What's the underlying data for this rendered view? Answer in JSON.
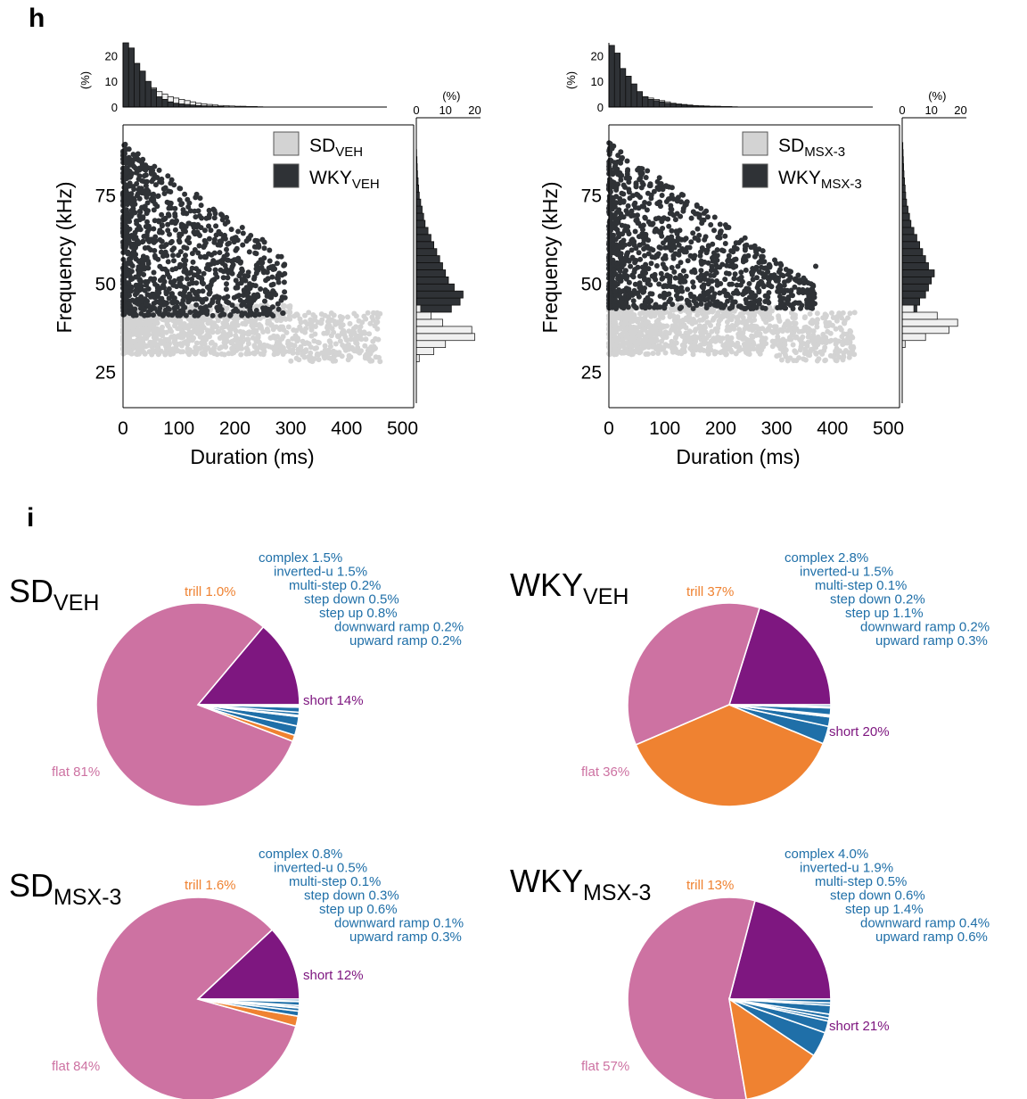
{
  "panels": {
    "h_label": "h",
    "i_label": "i"
  },
  "colors": {
    "sd_fill": "#d3d3d3",
    "wky_fill": "#2f3236",
    "flat": "#cd72a2",
    "trill": "#ef8231",
    "minor": "#1f6fa8",
    "short": "#7e1780"
  },
  "chart_data": [
    {
      "type": "scatter",
      "xlabel": "Duration (ms)",
      "ylabel": "Frequency (kHz)",
      "x_ticks": [
        "0",
        "100",
        "200",
        "300",
        "400",
        "500"
      ],
      "y_ticks": [
        "25",
        "50",
        "75"
      ],
      "xlim": [
        0,
        520
      ],
      "ylim": [
        15,
        95
      ],
      "legend": [
        {
          "base": "SD",
          "sub": "VEH",
          "color": "#d3d3d3"
        },
        {
          "base": "WKY",
          "sub": "VEH",
          "color": "#2f3236"
        }
      ],
      "top_hist": {
        "ylabel": "(%)",
        "ticks": [
          "0",
          "10",
          "20"
        ],
        "ylim": [
          0,
          25
        ],
        "bin_ms": 10,
        "wky": [
          25,
          23,
          17,
          14,
          10,
          7,
          4,
          3,
          2,
          1.5,
          1.2,
          1.0,
          0.8,
          0.6,
          0.5,
          0.4,
          0.3,
          0.2,
          0.1
        ],
        "sd": [
          8,
          9,
          9,
          8.5,
          8,
          7.5,
          6,
          5,
          4,
          3.5,
          3,
          2.5,
          2,
          1.5,
          1.2,
          1,
          0.8,
          0.6,
          0.5,
          0.4,
          0.3,
          0.3,
          0.2,
          0.2,
          0.1
        ]
      },
      "side_hist": {
        "ylabel": "(%)",
        "ticks": [
          "0",
          "10",
          "20"
        ],
        "xlim": [
          0,
          22
        ],
        "bin_khz": 2,
        "wky": [
          [
            43,
            12
          ],
          [
            45,
            15
          ],
          [
            47,
            16
          ],
          [
            49,
            13
          ],
          [
            51,
            11
          ],
          [
            53,
            10
          ],
          [
            55,
            9
          ],
          [
            57,
            8
          ],
          [
            59,
            7
          ],
          [
            61,
            6
          ],
          [
            63,
            5
          ],
          [
            65,
            4
          ],
          [
            67,
            3
          ],
          [
            69,
            2.5
          ],
          [
            71,
            2
          ],
          [
            73,
            1.5
          ],
          [
            75,
            1
          ],
          [
            77,
            0.8
          ],
          [
            79,
            0.6
          ],
          [
            81,
            0.4
          ],
          [
            83,
            0.3
          ],
          [
            85,
            0.2
          ],
          [
            87,
            0.1
          ]
        ],
        "sd": [
          [
            29,
            1
          ],
          [
            31,
            6
          ],
          [
            33,
            10
          ],
          [
            35,
            20
          ],
          [
            37,
            19
          ],
          [
            39,
            9
          ],
          [
            41,
            5
          ],
          [
            43,
            1.5
          ]
        ]
      },
      "points": {
        "wky_x_max": 290,
        "wky_y": [
          38,
          90
        ],
        "sd_x_max": 460,
        "sd_y": [
          30,
          45
        ]
      }
    },
    {
      "type": "scatter",
      "xlabel": "Duration (ms)",
      "ylabel": "Frequency (kHz)",
      "x_ticks": [
        "0",
        "100",
        "200",
        "300",
        "400",
        "500"
      ],
      "y_ticks": [
        "25",
        "50",
        "75"
      ],
      "xlim": [
        0,
        520
      ],
      "ylim": [
        15,
        95
      ],
      "legend": [
        {
          "base": "SD",
          "sub": "MSX-3",
          "color": "#d3d3d3"
        },
        {
          "base": "WKY",
          "sub": "MSX-3",
          "color": "#2f3236"
        }
      ],
      "top_hist": {
        "ylabel": "(%)",
        "ticks": [
          "0",
          "10",
          "20"
        ],
        "ylim": [
          0,
          25
        ],
        "bin_ms": 10,
        "wky": [
          24,
          21,
          15,
          12,
          9,
          6,
          4,
          3,
          2.5,
          2,
          1.5,
          1.2,
          1,
          0.8,
          0.6,
          0.5,
          0.4,
          0.3,
          0.2,
          0.1
        ],
        "sd": [
          6,
          8,
          8,
          7,
          6,
          5,
          4,
          3.5,
          3,
          2.5,
          2,
          1.5,
          1.2,
          1,
          0.8,
          0.6,
          0.5,
          0.4,
          0.3,
          0.3,
          0.2,
          0.2,
          0.1
        ]
      },
      "side_hist": {
        "ylabel": "(%)",
        "ticks": [
          "0",
          "10",
          "20"
        ],
        "xlim": [
          0,
          22
        ],
        "bin_khz": 2,
        "wky": [
          [
            41,
            3
          ],
          [
            43,
            5
          ],
          [
            45,
            6
          ],
          [
            47,
            8
          ],
          [
            49,
            9
          ],
          [
            51,
            10
          ],
          [
            53,
            11
          ],
          [
            55,
            9
          ],
          [
            57,
            8
          ],
          [
            59,
            7
          ],
          [
            61,
            6
          ],
          [
            63,
            5
          ],
          [
            65,
            4
          ],
          [
            67,
            3
          ],
          [
            69,
            2.5
          ],
          [
            71,
            2
          ],
          [
            73,
            1.5
          ],
          [
            75,
            1.2
          ],
          [
            77,
            1
          ],
          [
            79,
            0.8
          ],
          [
            81,
            0.6
          ],
          [
            83,
            0.5
          ],
          [
            85,
            0.4
          ],
          [
            87,
            0.3
          ],
          [
            89,
            0.2
          ]
        ],
        "sd": [
          [
            33,
            1
          ],
          [
            35,
            8
          ],
          [
            37,
            16
          ],
          [
            39,
            19
          ],
          [
            41,
            12
          ],
          [
            43,
            4
          ]
        ]
      },
      "points": {
        "wky_x_max": 370,
        "wky_y": [
          38,
          90
        ],
        "sd_x_max": 440,
        "sd_y": [
          30,
          45
        ]
      }
    },
    {
      "type": "pie",
      "title_base": "SD",
      "title_sub": "VEH",
      "slices": [
        {
          "name": "short",
          "label": "short 14%",
          "value": 14,
          "color": "#7e1780",
          "label_color": "#7e1780"
        },
        {
          "name": "flat",
          "label": "flat 81%",
          "value": 81,
          "color": "#cd72a2",
          "label_color": "#cd72a2"
        },
        {
          "name": "trill",
          "label": "trill 1.0%",
          "value": 1.0,
          "color": "#ef8231",
          "label_color": "#ef8231"
        },
        {
          "name": "complex",
          "label": "complex 1.5%",
          "value": 1.5,
          "color": "#1f6fa8",
          "label_color": "#1f6fa8"
        },
        {
          "name": "inverted-u",
          "label": "inverted-u 1.5%",
          "value": 1.5,
          "color": "#1f6fa8",
          "label_color": "#1f6fa8"
        },
        {
          "name": "multi-step",
          "label": "multi-step 0.2%",
          "value": 0.2,
          "color": "#1f6fa8",
          "label_color": "#1f6fa8"
        },
        {
          "name": "step-down",
          "label": "step down 0.5%",
          "value": 0.5,
          "color": "#1f6fa8",
          "label_color": "#1f6fa8"
        },
        {
          "name": "step-up",
          "label": "step up 0.8%",
          "value": 0.8,
          "color": "#1f6fa8",
          "label_color": "#1f6fa8"
        },
        {
          "name": "downward-ramp",
          "label": "downward ramp 0.2%",
          "value": 0.2,
          "color": "#1f6fa8",
          "label_color": "#1f6fa8"
        },
        {
          "name": "upward-ramp",
          "label": "upward ramp 0.2%",
          "value": 0.2,
          "color": "#1f6fa8",
          "label_color": "#1f6fa8"
        }
      ]
    },
    {
      "type": "pie",
      "title_base": "WKY",
      "title_sub": "VEH",
      "slices": [
        {
          "name": "short",
          "label": "short 20%",
          "value": 20,
          "color": "#7e1780",
          "label_color": "#7e1780"
        },
        {
          "name": "flat",
          "label": "flat 36%",
          "value": 36,
          "color": "#cd72a2",
          "label_color": "#cd72a2"
        },
        {
          "name": "trill",
          "label": "trill 37%",
          "value": 37,
          "color": "#ef8231",
          "label_color": "#ef8231"
        },
        {
          "name": "complex",
          "label": "complex 2.8%",
          "value": 2.8,
          "color": "#1f6fa8",
          "label_color": "#1f6fa8"
        },
        {
          "name": "inverted-u",
          "label": "inverted-u 1.5%",
          "value": 1.5,
          "color": "#1f6fa8",
          "label_color": "#1f6fa8"
        },
        {
          "name": "multi-step",
          "label": "multi-step 0.1%",
          "value": 0.1,
          "color": "#1f6fa8",
          "label_color": "#1f6fa8"
        },
        {
          "name": "step-down",
          "label": "step down 0.2%",
          "value": 0.2,
          "color": "#1f6fa8",
          "label_color": "#1f6fa8"
        },
        {
          "name": "step-up",
          "label": "step up 1.1%",
          "value": 1.1,
          "color": "#1f6fa8",
          "label_color": "#1f6fa8"
        },
        {
          "name": "downward-ramp",
          "label": "downward ramp 0.2%",
          "value": 0.2,
          "color": "#1f6fa8",
          "label_color": "#1f6fa8"
        },
        {
          "name": "upward-ramp",
          "label": "upward ramp 0.3%",
          "value": 0.3,
          "color": "#1f6fa8",
          "label_color": "#1f6fa8"
        }
      ]
    },
    {
      "type": "pie",
      "title_base": "SD",
      "title_sub": "MSX-3",
      "slices": [
        {
          "name": "short",
          "label": "short 12%",
          "value": 12,
          "color": "#7e1780",
          "label_color": "#7e1780"
        },
        {
          "name": "flat",
          "label": "flat 84%",
          "value": 84,
          "color": "#cd72a2",
          "label_color": "#cd72a2"
        },
        {
          "name": "trill",
          "label": "trill 1.6%",
          "value": 1.6,
          "color": "#ef8231",
          "label_color": "#ef8231"
        },
        {
          "name": "complex",
          "label": "complex 0.8%",
          "value": 0.8,
          "color": "#1f6fa8",
          "label_color": "#1f6fa8"
        },
        {
          "name": "inverted-u",
          "label": "inverted-u 0.5%",
          "value": 0.5,
          "color": "#1f6fa8",
          "label_color": "#1f6fa8"
        },
        {
          "name": "multi-step",
          "label": "multi-step 0.1%",
          "value": 0.1,
          "color": "#1f6fa8",
          "label_color": "#1f6fa8"
        },
        {
          "name": "step-down",
          "label": "step down 0.3%",
          "value": 0.3,
          "color": "#1f6fa8",
          "label_color": "#1f6fa8"
        },
        {
          "name": "step-up",
          "label": "step up 0.6%",
          "value": 0.6,
          "color": "#1f6fa8",
          "label_color": "#1f6fa8"
        },
        {
          "name": "downward-ramp",
          "label": "downward ramp 0.1%",
          "value": 0.1,
          "color": "#1f6fa8",
          "label_color": "#1f6fa8"
        },
        {
          "name": "upward-ramp",
          "label": "upward ramp 0.3%",
          "value": 0.3,
          "color": "#1f6fa8",
          "label_color": "#1f6fa8"
        }
      ]
    },
    {
      "type": "pie",
      "title_base": "WKY",
      "title_sub": "MSX-3",
      "slices": [
        {
          "name": "short",
          "label": "short 21%",
          "value": 21,
          "color": "#7e1780",
          "label_color": "#7e1780"
        },
        {
          "name": "flat",
          "label": "flat 57%",
          "value": 57,
          "color": "#cd72a2",
          "label_color": "#cd72a2"
        },
        {
          "name": "trill",
          "label": "trill 13%",
          "value": 13,
          "color": "#ef8231",
          "label_color": "#ef8231"
        },
        {
          "name": "complex",
          "label": "complex 4.0%",
          "value": 4.0,
          "color": "#1f6fa8",
          "label_color": "#1f6fa8"
        },
        {
          "name": "inverted-u",
          "label": "inverted-u 1.9%",
          "value": 1.9,
          "color": "#1f6fa8",
          "label_color": "#1f6fa8"
        },
        {
          "name": "multi-step",
          "label": "multi-step 0.5%",
          "value": 0.5,
          "color": "#1f6fa8",
          "label_color": "#1f6fa8"
        },
        {
          "name": "step-down",
          "label": "step down 0.6%",
          "value": 0.6,
          "color": "#1f6fa8",
          "label_color": "#1f6fa8"
        },
        {
          "name": "step-up",
          "label": "step up 1.4%",
          "value": 1.4,
          "color": "#1f6fa8",
          "label_color": "#1f6fa8"
        },
        {
          "name": "downward-ramp",
          "label": "downward ramp 0.4%",
          "value": 0.4,
          "color": "#1f6fa8",
          "label_color": "#1f6fa8"
        },
        {
          "name": "upward-ramp",
          "label": "upward ramp 0.6%",
          "value": 0.6,
          "color": "#1f6fa8",
          "label_color": "#1f6fa8"
        }
      ]
    }
  ]
}
